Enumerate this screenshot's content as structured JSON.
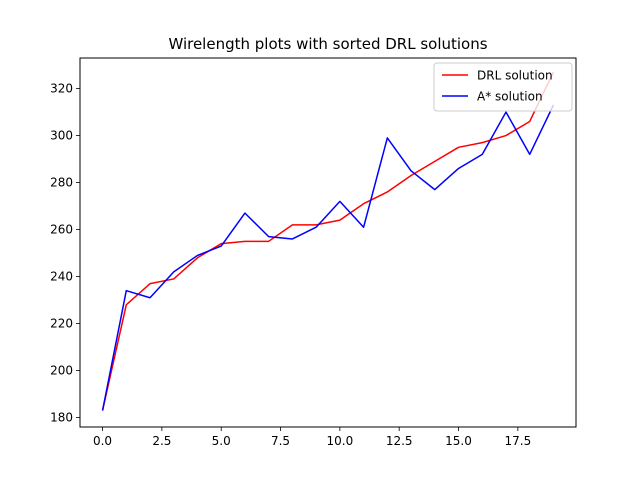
{
  "chart_data": {
    "type": "line",
    "title": "Wirelength plots with sorted DRL solutions",
    "xlabel": "",
    "ylabel": "",
    "x": [
      0,
      1,
      2,
      3,
      4,
      5,
      6,
      7,
      8,
      9,
      10,
      11,
      12,
      13,
      14,
      15,
      16,
      17,
      18,
      19
    ],
    "xlim": [
      -0.95,
      19.95
    ],
    "ylim": [
      176,
      333
    ],
    "xticks": [
      0,
      2.5,
      5,
      7.5,
      10,
      12.5,
      15,
      17.5
    ],
    "xtick_labels": [
      "0.0",
      "2.5",
      "5.0",
      "7.5",
      "10.0",
      "12.5",
      "15.0",
      "17.5"
    ],
    "yticks": [
      180,
      200,
      220,
      240,
      260,
      280,
      300,
      320
    ],
    "ytick_labels": [
      "180",
      "200",
      "220",
      "240",
      "260",
      "280",
      "300",
      "320"
    ],
    "grid": false,
    "legend": "top-right",
    "series": [
      {
        "name": "DRL solution",
        "color": "#ff0000",
        "values": [
          183,
          228,
          237,
          239,
          248,
          254,
          255,
          255,
          262,
          262,
          264,
          271,
          276,
          283,
          289,
          295,
          297,
          300,
          306,
          327
        ]
      },
      {
        "name": "A* solution",
        "color": "#0000ff",
        "values": [
          183,
          234,
          231,
          242,
          249,
          253,
          267,
          257,
          256,
          261,
          272,
          261,
          299,
          285,
          277,
          286,
          292,
          310,
          292,
          313
        ]
      }
    ]
  }
}
